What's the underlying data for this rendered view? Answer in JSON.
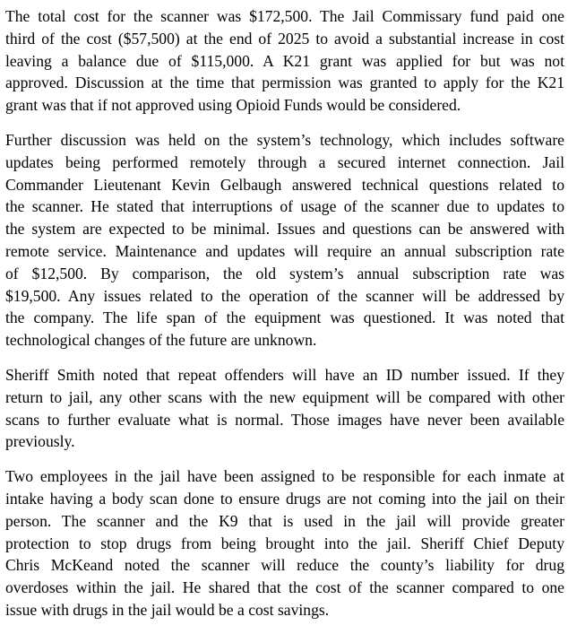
{
  "paragraphs": [
    {
      "lines": [
        "The total cost for the scanner was $172,500.  The Jail Commissary fund paid one",
        "third of the cost ($57,500) at the end of 2025 to avoid a substantial increase in cost",
        "leaving a balance due of $115,000.  A K21 grant was applied for but was not",
        "approved.  Discussion at the time that permission was granted to apply for the K21",
        "grant was that if not approved using Opioid Funds would be considered."
      ]
    },
    {
      "lines": [
        "Further discussion was held on the system’s technology, which includes software",
        "updates being performed remotely through a secured internet connection. Jail",
        "Commander Lieutenant Kevin Gelbaugh  answered technical questions related to",
        "the scanner.  He stated that interruptions of usage of the scanner due to updates to",
        "the system are expected to be minimal. Issues and questions can be answered with",
        "remote service.  Maintenance and updates will require an annual subscription rate",
        "of $12,500.  By comparison, the old system’s annual subscription rate was",
        "$19,500.  Any issues related to the operation of the scanner will be addressed by",
        "the company.  The life span of the equipment was questioned.  It was noted that",
        "technological changes of the future are unknown."
      ]
    },
    {
      "lines": [
        "Sheriff Smith noted that repeat offenders will have an ID number issued.  If they",
        "return to jail, any other  scans with the new equipment will be compared with other",
        "scans to further evaluate what is normal.  Those images have never been available",
        "previously."
      ]
    },
    {
      "lines": [
        "Two employees in the jail have been assigned to be responsible for each inmate at",
        "intake having a body scan done to ensure drugs are not coming into the jail on their",
        "person.  The scanner and the K9 that is used in the jail will provide greater",
        "protection to stop drugs from being brought into the jail.  Sheriff Chief Deputy",
        "Chris McKeand noted the scanner will reduce the county’s liability for drug",
        "overdoses within the jail.  He shared that the cost of the scanner compared to one",
        "issue with drugs in the jail would be a cost savings."
      ]
    }
  ]
}
